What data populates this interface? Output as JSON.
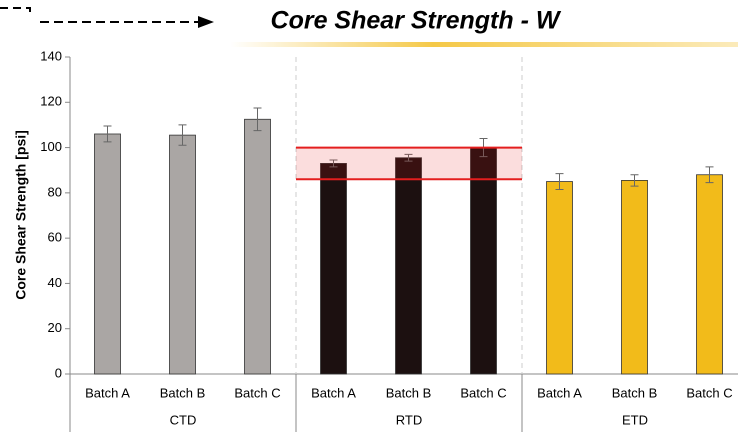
{
  "chart_data": {
    "type": "bar",
    "title": "Core Shear Strength - W",
    "y_label": "Core Shear Strength [psi]",
    "ylim": [
      0,
      140
    ],
    "yticks": [
      0,
      20,
      40,
      60,
      80,
      100,
      120,
      140
    ],
    "groups": [
      {
        "name": "CTD",
        "color": "#aaa6a4",
        "categories": [
          "Batch A",
          "Batch B",
          "Batch C"
        ],
        "values": [
          106,
          105.5,
          112.5
        ],
        "errors": [
          3.5,
          4.5,
          5
        ]
      },
      {
        "name": "RTD",
        "color": "#1c1010",
        "categories": [
          "Batch A",
          "Batch B",
          "Batch C"
        ],
        "values": [
          93,
          95.5,
          100
        ],
        "errors": [
          1.5,
          1.5,
          4
        ]
      },
      {
        "name": "ETD",
        "color": "#f2bb1a",
        "categories": [
          "Batch A",
          "Batch B",
          "Batch C"
        ],
        "values": [
          85,
          85.5,
          88
        ],
        "errors": [
          3.5,
          2.5,
          3.5
        ]
      }
    ],
    "reference_band": {
      "group": 1,
      "range": [
        86,
        100
      ],
      "color": "#e41e1e"
    }
  }
}
